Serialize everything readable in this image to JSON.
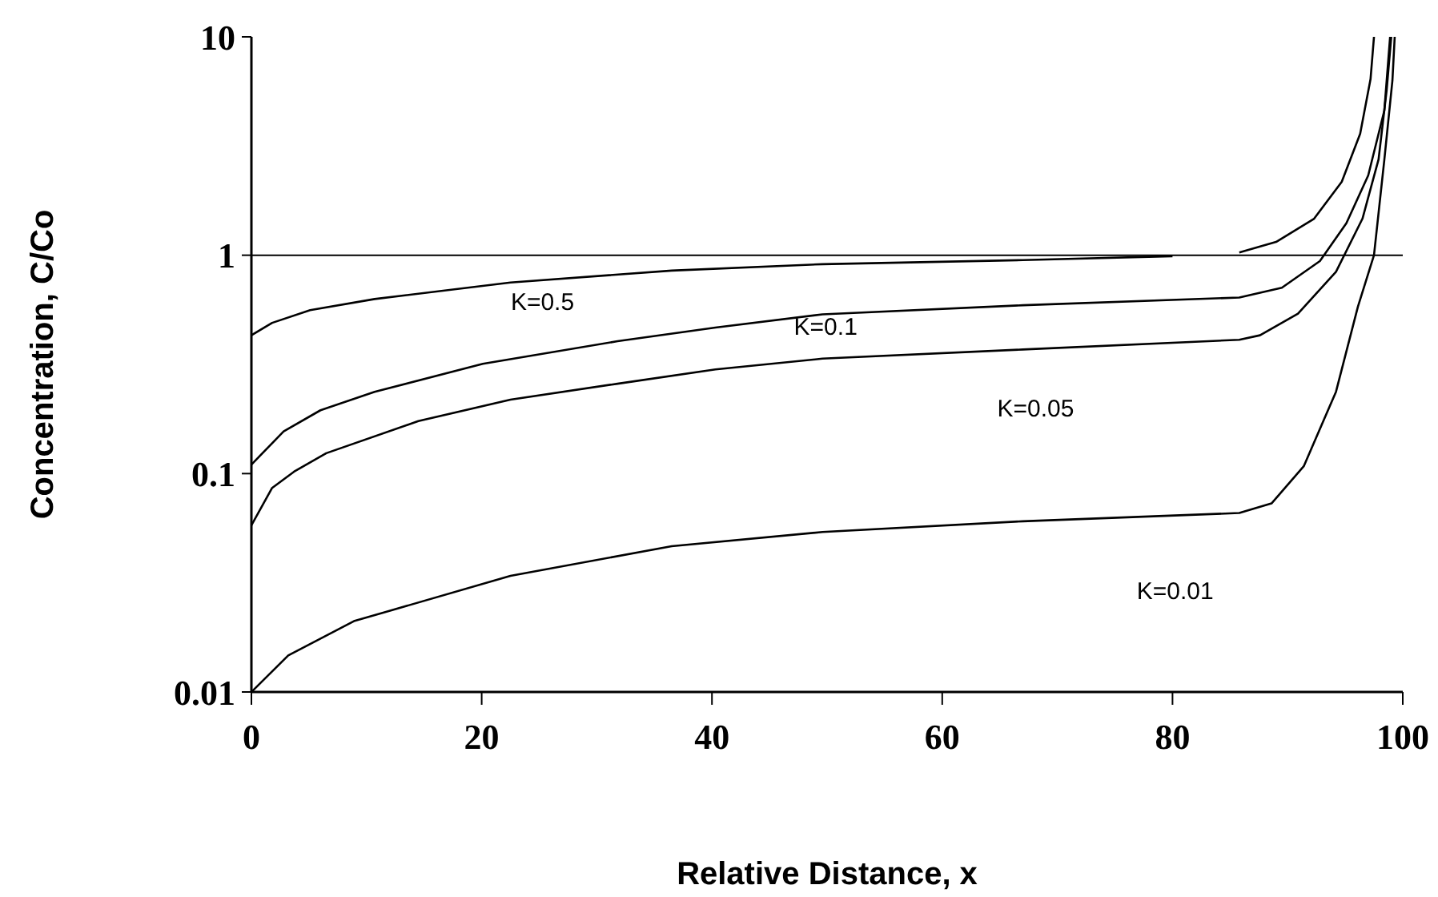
{
  "chart_data": {
    "type": "line",
    "xlabel": "Relative Distance, x",
    "ylabel": "Concentration, C/Co",
    "log": "y",
    "xlim": [
      0,
      100
    ],
    "xticks": [
      0,
      20,
      40,
      60,
      80,
      100
    ],
    "ylim": [
      0.01,
      10
    ],
    "yticks": [
      0.01,
      0.1,
      1,
      10
    ],
    "grid": false,
    "legend": false,
    "marker": "none",
    "line_style": "solid",
    "ref_lines": [
      {
        "axis": "y",
        "value": 1,
        "color": "#000000"
      }
    ],
    "series": [
      {
        "name": "K=0.5",
        "color": "#000000",
        "x": [
          0,
          1.8,
          5.1,
          10.7,
          22.5,
          36.5,
          49.6,
          67,
          80,
          83,
          85.8,
          89,
          92.3,
          94.7,
          96.3,
          97.2,
          97.5
        ],
        "values": [
          0.43,
          0.49,
          0.56,
          0.63,
          0.75,
          0.85,
          0.91,
          0.95,
          0.99,
          null,
          1.03,
          1.15,
          1.47,
          2.17,
          3.6,
          6.4,
          10
        ]
      },
      {
        "name": "K=0.1",
        "color": "#000000",
        "x": [
          0,
          2.8,
          6,
          10.7,
          20.1,
          31.8,
          40.3,
          49.6,
          67,
          85.8,
          89.5,
          92.8,
          95.1,
          97,
          98.4,
          98.9
        ],
        "values": [
          0.11,
          0.156,
          0.195,
          0.237,
          0.318,
          0.404,
          0.466,
          0.536,
          0.59,
          0.64,
          0.71,
          0.94,
          1.4,
          2.32,
          4.6,
          10
        ]
      },
      {
        "name": "K=0.05",
        "color": "#000000",
        "x": [
          0,
          1.8,
          3.7,
          6.5,
          14.5,
          22.5,
          31.8,
          40.3,
          49.6,
          67,
          85.8,
          87.6,
          90.9,
          94.2,
          96.5,
          97.9,
          98.6,
          99
        ],
        "values": [
          0.058,
          0.086,
          0.102,
          0.124,
          0.174,
          0.218,
          0.258,
          0.3,
          0.336,
          0.37,
          0.41,
          0.43,
          0.54,
          0.84,
          1.47,
          2.75,
          5.7,
          10
        ]
      },
      {
        "name": "K=0.01",
        "color": "#000000",
        "x": [
          0,
          3.2,
          8.9,
          22.5,
          36.5,
          49.6,
          67,
          85.8,
          88.6,
          91.4,
          94.2,
          96.1,
          97.5,
          98.4,
          99.1,
          99.3
        ],
        "values": [
          0.01,
          0.0147,
          0.0211,
          0.034,
          0.0465,
          0.054,
          0.0605,
          0.066,
          0.073,
          0.108,
          0.237,
          0.58,
          1,
          2.74,
          6.3,
          10
        ]
      }
    ]
  }
}
